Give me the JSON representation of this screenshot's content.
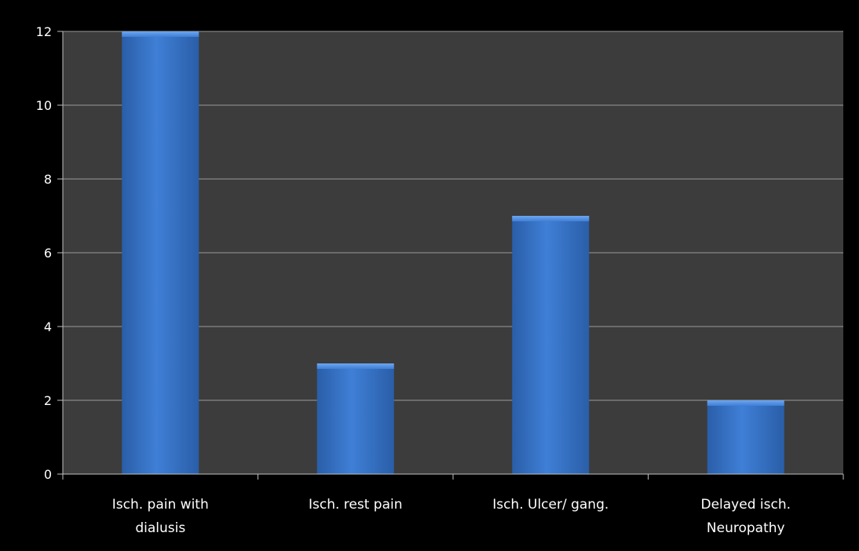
{
  "chart_data": {
    "type": "bar",
    "categories": [
      [
        "Isch. pain with",
        "dialusis"
      ],
      [
        "Isch. rest pain"
      ],
      [
        "Isch. Ulcer/ gang."
      ],
      [
        "Delayed isch.",
        "Neuropathy"
      ]
    ],
    "values": [
      12,
      3,
      7,
      2
    ],
    "ylim": [
      0,
      12
    ],
    "yticks": [
      0,
      2,
      4,
      6,
      8,
      10,
      12
    ],
    "grid": true,
    "legend": "none",
    "colors": {
      "background": "#000000",
      "plot_area": "#3c3c3c",
      "gridline": "#9a9a9a",
      "axis": "#bfbfbf",
      "bar": "#3f7fd6",
      "bar_highlight": "#6ea6f0",
      "bar_shadow": "#2a5ea8"
    }
  }
}
